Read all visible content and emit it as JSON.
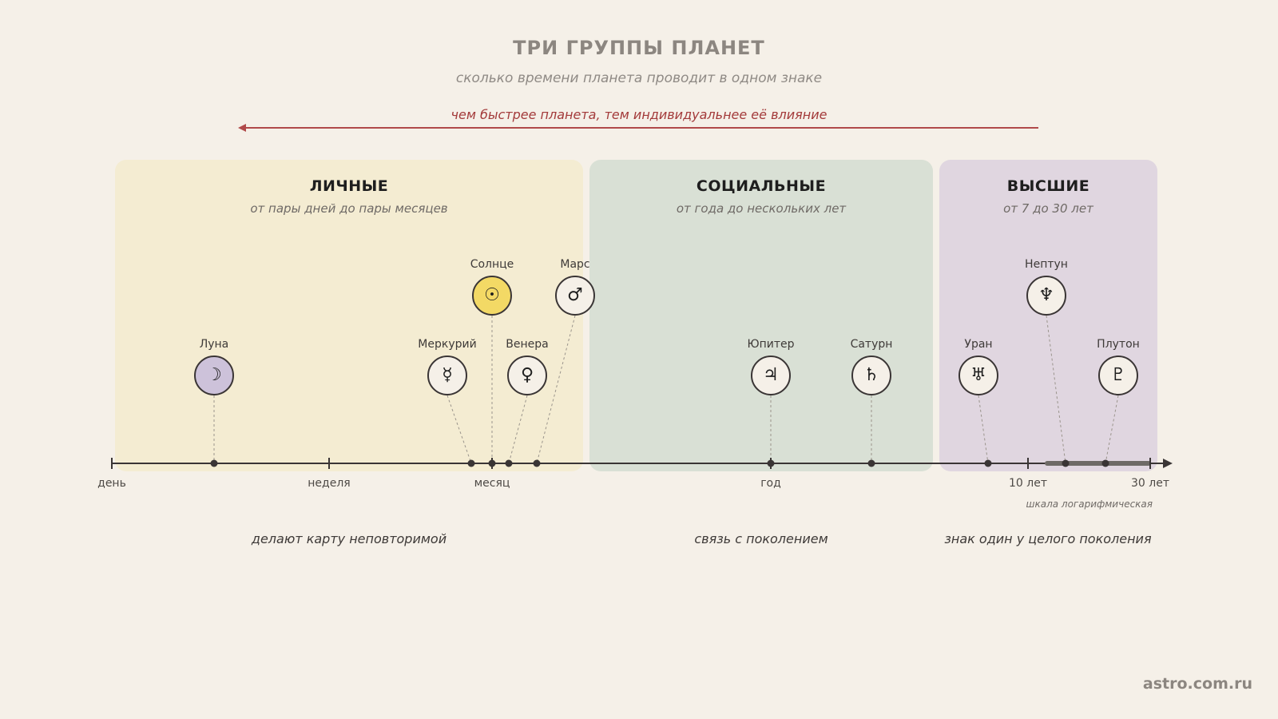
{
  "header": {
    "title": "ТРИ ГРУППЫ ПЛАНЕТ",
    "subtitle": "сколько времени планета проводит в одном знаке",
    "speed_note": "чем быстрее планета, тем индивидуальнее её влияние"
  },
  "groups": [
    {
      "id": "personal",
      "title": "ЛИЧНЫЕ",
      "range": "от пары дней до пары месяцев",
      "note": "делают карту неповторимой",
      "color": "#f4ecd2"
    },
    {
      "id": "social",
      "title": "СОЦИАЛЬНЫЕ",
      "range": "от года до нескольких лет",
      "note": "связь с поколением",
      "color": "#d9e0d5"
    },
    {
      "id": "higher",
      "title": "ВЫСШИЕ",
      "range": "от 7 до 30 лет",
      "note": "знак один у целого поколения",
      "color": "#e0d6e0"
    }
  ],
  "axis": {
    "ticks": [
      "день",
      "неделя",
      "месяц",
      "год",
      "10 лет",
      "30 лет"
    ],
    "scale_note": "шкала логарифмическая"
  },
  "planets": [
    {
      "name": "Луна",
      "symbol": "☽",
      "icon": "moon-icon",
      "fill": "#cdc2da"
    },
    {
      "name": "Меркурий",
      "symbol": "☿",
      "icon": "mercury-icon",
      "fill": "#f5f0e8"
    },
    {
      "name": "Солнце",
      "symbol": "☉",
      "icon": "sun-icon",
      "fill": "#f3d965"
    },
    {
      "name": "Венера",
      "symbol": "♀",
      "icon": "venus-icon",
      "fill": "#f5f0e8"
    },
    {
      "name": "Марс",
      "symbol": "♂",
      "icon": "mars-icon",
      "fill": "#f5f0e8"
    },
    {
      "name": "Юпитер",
      "symbol": "♃",
      "icon": "jupiter-icon",
      "fill": "#f5f0e8"
    },
    {
      "name": "Сатурн",
      "symbol": "♄",
      "icon": "saturn-icon",
      "fill": "#f5f0e8"
    },
    {
      "name": "Уран",
      "symbol": "♅",
      "icon": "uranus-icon",
      "fill": "#f5f0e8"
    },
    {
      "name": "Нептун",
      "symbol": "♆",
      "icon": "neptune-icon",
      "fill": "#f5f0e8"
    },
    {
      "name": "Плутон",
      "symbol": "♇",
      "icon": "pluto-icon",
      "fill": "#f5f0e8"
    }
  ],
  "footer": {
    "brand": "astro.com.ru"
  },
  "colors": {
    "accent": "#b04a4a",
    "axis": "#3a3535",
    "text": "#3e3a38"
  }
}
